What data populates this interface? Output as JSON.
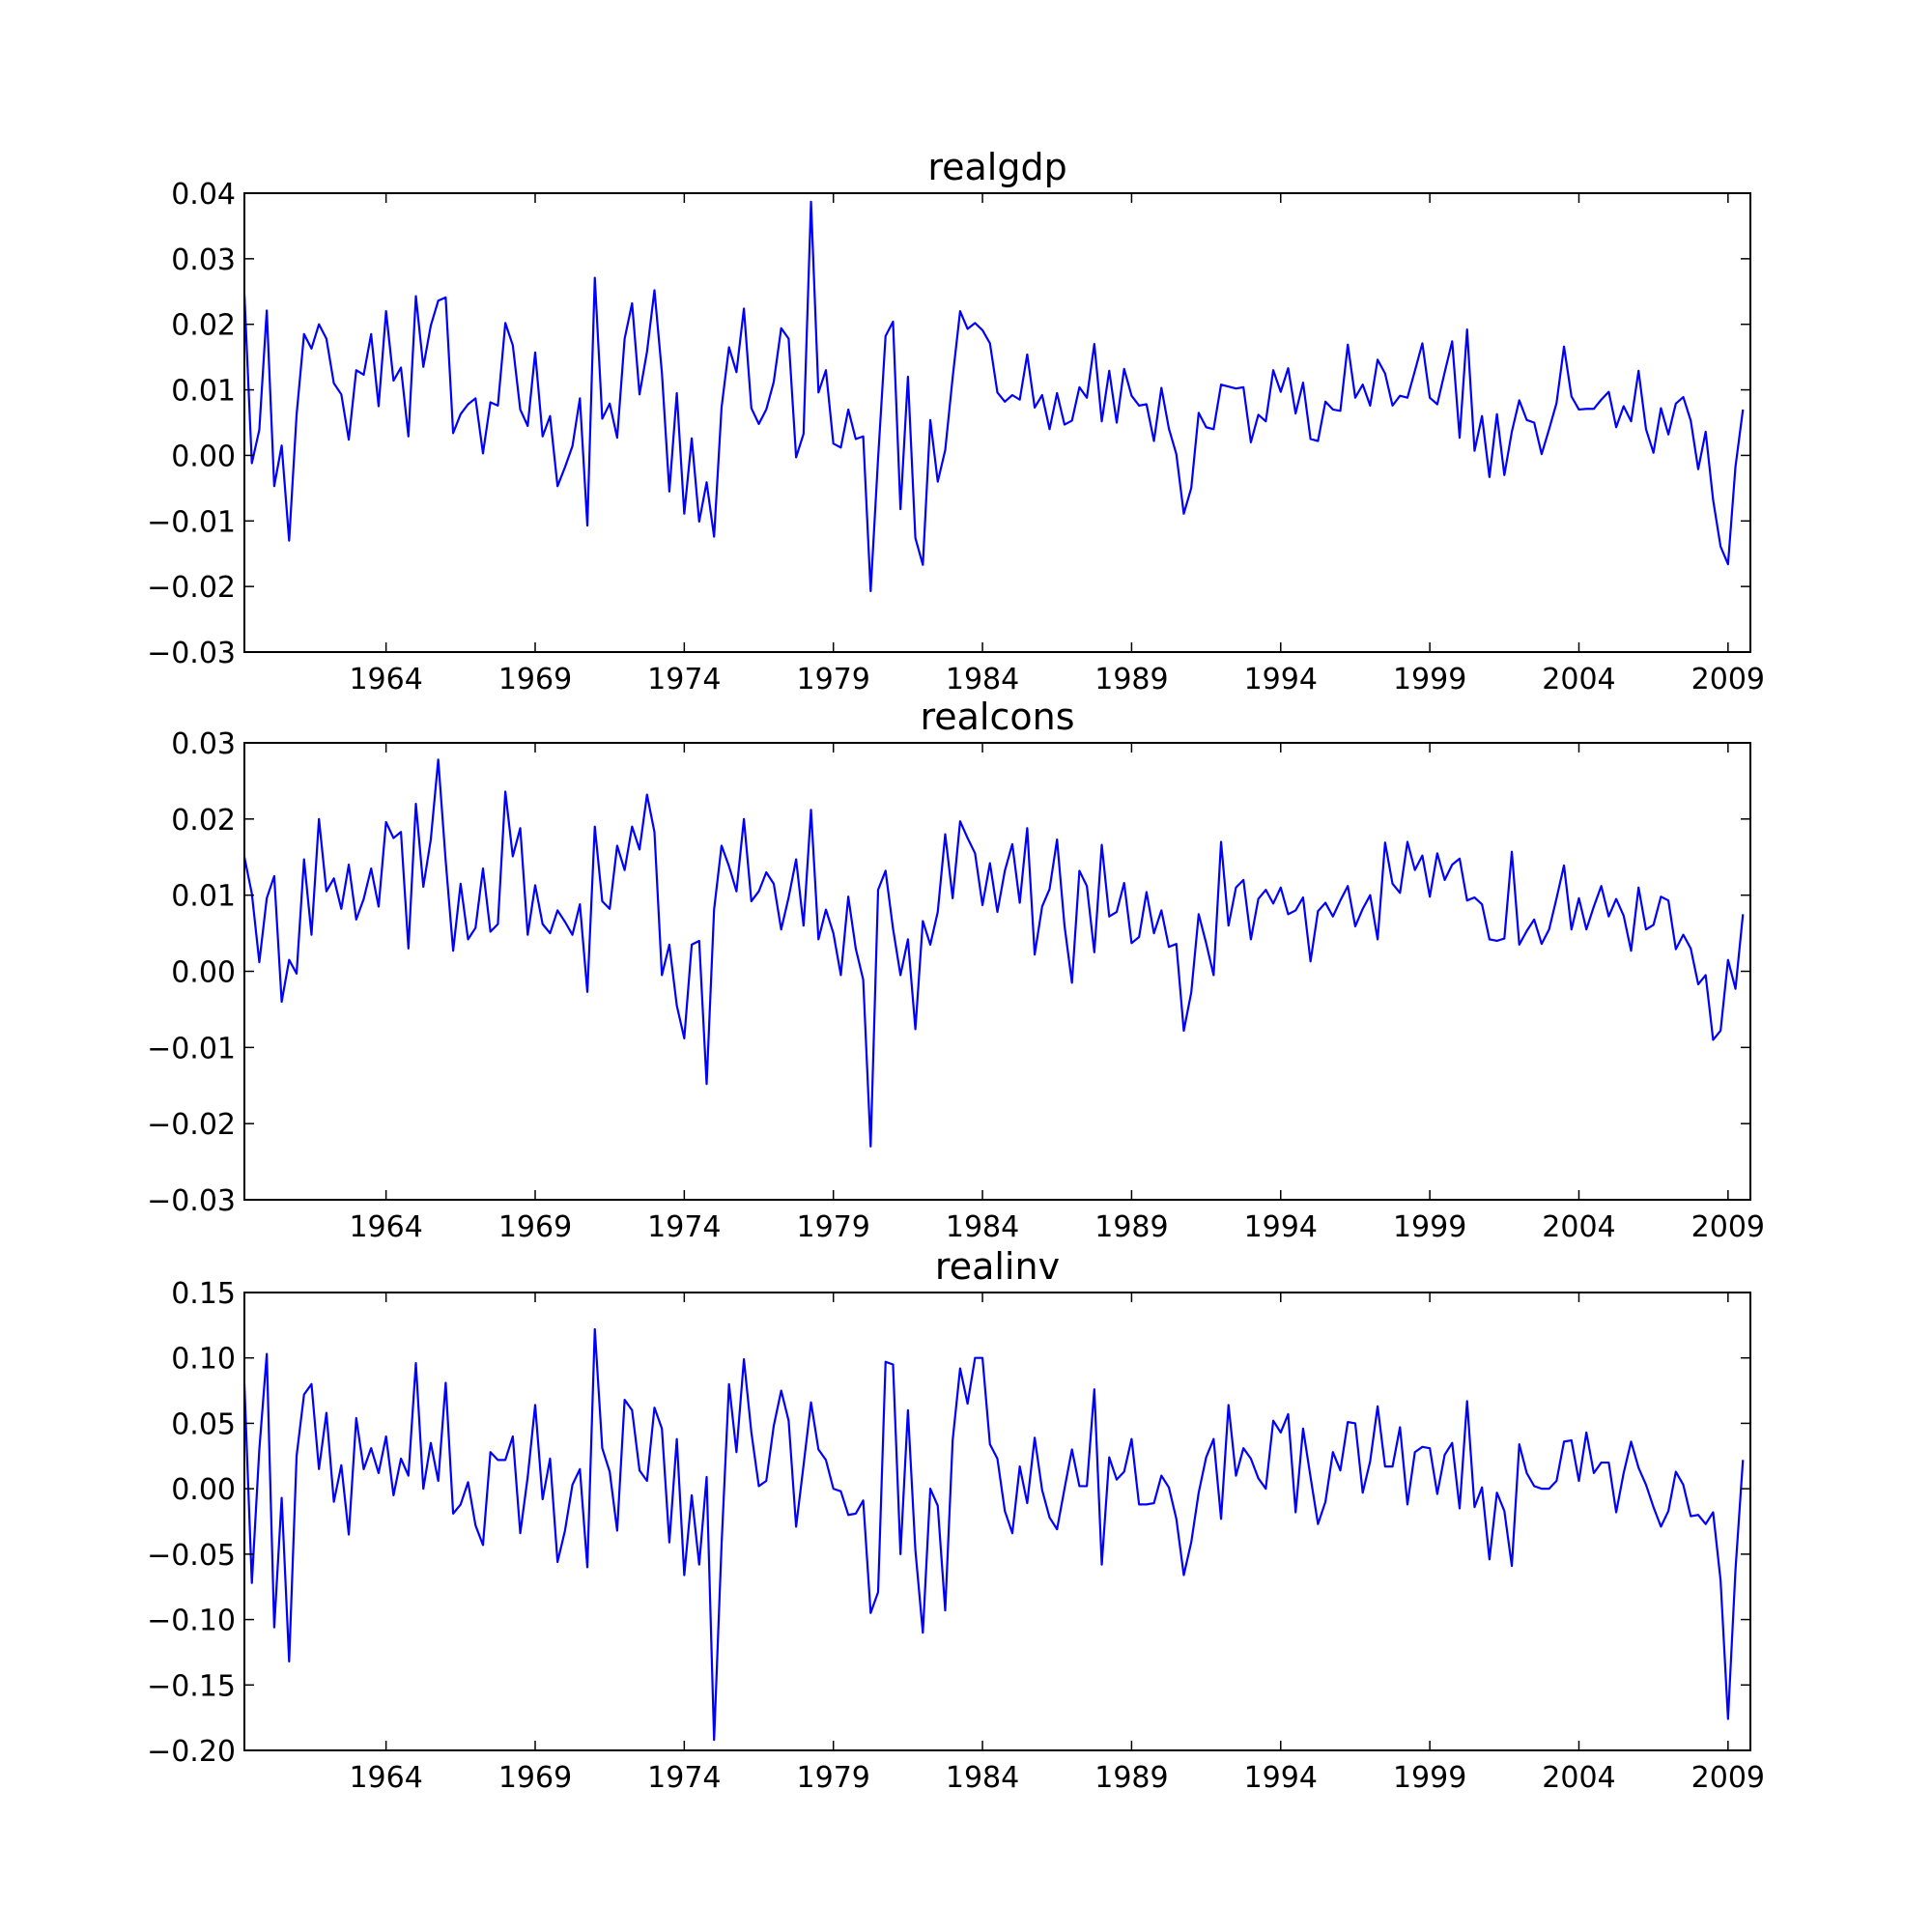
{
  "chart_data": [
    {
      "type": "line",
      "title": "realgdp",
      "xlabel": "",
      "ylabel": "",
      "xlim": [
        1959.25,
        2009.75
      ],
      "ylim": [
        -0.03,
        0.04
      ],
      "yticks": [
        -0.03,
        -0.02,
        -0.01,
        0.0,
        0.01,
        0.02,
        0.03,
        0.04
      ],
      "ytick_labels": [
        "−0.03",
        "−0.02",
        "−0.01",
        "0.00",
        "0.01",
        "0.02",
        "0.03",
        "0.04"
      ],
      "xticks": [
        1964,
        1969,
        1974,
        1979,
        1984,
        1989,
        1994,
        1999,
        2004,
        2009
      ],
      "xtick_labels": [
        "1964",
        "1969",
        "1974",
        "1979",
        "1984",
        "1989",
        "1994",
        "1999",
        "2004",
        "2009"
      ],
      "grid": false,
      "color": "#0000ff",
      "series": [
        {
          "x_start": 1959.25,
          "x_step": 0.25,
          "values": [
            0.0246,
            -0.0012,
            0.0039,
            0.0221,
            -0.0047,
            0.0015,
            -0.013,
            0.0062,
            0.0185,
            0.0163,
            0.02,
            0.0178,
            0.011,
            0.0093,
            0.0024,
            0.013,
            0.0123,
            0.0185,
            0.0075,
            0.022,
            0.0114,
            0.0134,
            0.0029,
            0.0243,
            0.0135,
            0.0198,
            0.0236,
            0.0241,
            0.0034,
            0.0063,
            0.0078,
            0.0087,
            0.0003,
            0.0081,
            0.0076,
            0.0202,
            0.0168,
            0.007,
            0.0045,
            0.0157,
            0.0029,
            0.006,
            -0.0047,
            -0.0018,
            0.0014,
            0.0087,
            -0.0107,
            0.0271,
            0.0056,
            0.0079,
            0.0027,
            0.0178,
            0.0232,
            0.0093,
            0.0158,
            0.0252,
            0.0126,
            -0.0055,
            0.0095,
            -0.0089,
            0.0026,
            -0.0101,
            -0.0041,
            -0.0124,
            0.0073,
            0.0165,
            0.0127,
            0.0224,
            0.0072,
            0.0048,
            0.007,
            0.0112,
            0.0194,
            0.0178,
            -0.0003,
            0.0033,
            0.0387,
            0.0096,
            0.013,
            0.0018,
            0.0012,
            0.007,
            0.0025,
            0.0029,
            -0.0207,
            -0.0004,
            0.0182,
            0.0204,
            -0.0082,
            0.012,
            -0.0126,
            -0.0167,
            0.0054,
            -0.004,
            0.0008,
            0.0119,
            0.022,
            0.0193,
            0.0202,
            0.0191,
            0.0171,
            0.0096,
            0.0082,
            0.0092,
            0.0085,
            0.0154,
            0.0073,
            0.0092,
            0.004,
            0.0095,
            0.0047,
            0.0053,
            0.0104,
            0.0088,
            0.017,
            0.0052,
            0.0129,
            0.005,
            0.0132,
            0.0091,
            0.0076,
            0.0078,
            0.0022,
            0.0103,
            0.0041,
            0.0002,
            -0.0089,
            -0.005,
            0.0065,
            0.0043,
            0.004,
            0.0108,
            0.0105,
            0.0102,
            0.0104,
            0.002,
            0.0062,
            0.0052,
            0.013,
            0.0097,
            0.0133,
            0.0064,
            0.0111,
            0.0025,
            0.0022,
            0.0082,
            0.007,
            0.0068,
            0.0169,
            0.0088,
            0.0108,
            0.0076,
            0.0146,
            0.0125,
            0.0076,
            0.0091,
            0.0088,
            0.0129,
            0.0171,
            0.0088,
            0.0078,
            0.0127,
            0.0174,
            0.0027,
            0.0192,
            0.0007,
            0.006,
            -0.0033,
            0.0063,
            -0.003,
            0.0036,
            0.0084,
            0.0054,
            0.005,
            0.0002,
            0.004,
            0.008,
            0.0166,
            0.009,
            0.007,
            0.0071,
            0.0071,
            0.0085,
            0.0097,
            0.0043,
            0.0075,
            0.0052,
            0.0129,
            0.004,
            0.0004,
            0.0072,
            0.0032,
            0.0079,
            0.0089,
            0.0053,
            -0.0021,
            0.0036,
            -0.0068,
            -0.0139,
            -0.0166,
            -0.0017,
            0.007
          ]
        }
      ]
    },
    {
      "type": "line",
      "title": "realcons",
      "xlabel": "",
      "ylabel": "",
      "xlim": [
        1959.25,
        2009.75
      ],
      "ylim": [
        -0.03,
        0.03
      ],
      "yticks": [
        -0.03,
        -0.02,
        -0.01,
        0.0,
        0.01,
        0.02,
        0.03
      ],
      "ytick_labels": [
        "−0.03",
        "−0.02",
        "−0.01",
        "0.00",
        "0.01",
        "0.02",
        "0.03"
      ],
      "xticks": [
        1964,
        1969,
        1974,
        1979,
        1984,
        1989,
        1994,
        1999,
        2004,
        2009
      ],
      "xtick_labels": [
        "1964",
        "1969",
        "1974",
        "1979",
        "1984",
        "1989",
        "1994",
        "1999",
        "2004",
        "2009"
      ],
      "grid": false,
      "color": "#0000ff",
      "series": [
        {
          "x_start": 1959.25,
          "x_step": 0.25,
          "values": [
            0.015,
            0.0102,
            0.0012,
            0.0096,
            0.0125,
            -0.004,
            0.0015,
            -0.0003,
            0.0147,
            0.0048,
            0.02,
            0.0105,
            0.0122,
            0.0082,
            0.014,
            0.0068,
            0.0095,
            0.0135,
            0.0085,
            0.0196,
            0.0175,
            0.0183,
            0.003,
            0.022,
            0.0111,
            0.0173,
            0.0278,
            0.0145,
            0.0027,
            0.0115,
            0.0042,
            0.0057,
            0.0135,
            0.0052,
            0.0062,
            0.0236,
            0.0151,
            0.0188,
            0.0048,
            0.0113,
            0.0062,
            0.005,
            0.008,
            0.0065,
            0.0048,
            0.0088,
            -0.0027,
            0.019,
            0.0092,
            0.0082,
            0.0165,
            0.0133,
            0.019,
            0.016,
            0.0232,
            0.0183,
            -0.0005,
            0.0035,
            -0.0045,
            -0.0088,
            0.0035,
            0.004,
            -0.0148,
            0.0081,
            0.0165,
            0.0138,
            0.0105,
            0.02,
            0.0092,
            0.0105,
            0.013,
            0.0115,
            0.0055,
            0.0097,
            0.0147,
            0.006,
            0.0212,
            0.0042,
            0.0081,
            0.005,
            -0.0005,
            0.0098,
            0.003,
            -0.0011,
            -0.023,
            0.0107,
            0.0132,
            0.0056,
            -0.0005,
            0.0042,
            -0.0076,
            0.0066,
            0.0035,
            0.0078,
            0.018,
            0.0096,
            0.0197,
            0.0175,
            0.0155,
            0.0087,
            0.0142,
            0.0078,
            0.0132,
            0.0167,
            0.009,
            0.0188,
            0.0022,
            0.0085,
            0.0108,
            0.0173,
            0.006,
            -0.0015,
            0.0132,
            0.0112,
            0.0025,
            0.0166,
            0.0072,
            0.0078,
            0.0116,
            0.0037,
            0.0045,
            0.0104,
            0.005,
            0.008,
            0.0032,
            0.0036,
            -0.0078,
            -0.0028,
            0.0075,
            0.0037,
            -0.0005,
            0.017,
            0.006,
            0.011,
            0.012,
            0.0042,
            0.0095,
            0.0107,
            0.0089,
            0.011,
            0.0075,
            0.008,
            0.0097,
            0.0013,
            0.0079,
            0.009,
            0.0072,
            0.0093,
            0.0112,
            0.0059,
            0.0082,
            0.01,
            0.0042,
            0.0169,
            0.0115,
            0.0103,
            0.017,
            0.0133,
            0.0152,
            0.0098,
            0.0155,
            0.012,
            0.014,
            0.0148,
            0.0093,
            0.0097,
            0.0088,
            0.0042,
            0.004,
            0.0043,
            0.0157,
            0.0035,
            0.0053,
            0.0068,
            0.0036,
            0.0055,
            0.0096,
            0.0139,
            0.0055,
            0.0096,
            0.0055,
            0.0085,
            0.0112,
            0.0072,
            0.0095,
            0.0073,
            0.0027,
            0.011,
            0.0055,
            0.0061,
            0.0098,
            0.0093,
            0.0029,
            0.0048,
            0.003,
            -0.0017,
            -0.0005,
            -0.009,
            -0.0078,
            0.0015,
            -0.0023,
            0.0075
          ]
        }
      ]
    },
    {
      "type": "line",
      "title": "realinv",
      "xlabel": "",
      "ylabel": "",
      "xlim": [
        1959.25,
        2009.75
      ],
      "ylim": [
        -0.2,
        0.15
      ],
      "yticks": [
        -0.2,
        -0.15,
        -0.1,
        -0.05,
        0.0,
        0.05,
        0.1,
        0.15
      ],
      "ytick_labels": [
        "−0.20",
        "−0.15",
        "−0.10",
        "−0.05",
        "0.00",
        "0.05",
        "0.10",
        "0.15"
      ],
      "xticks": [
        1964,
        1969,
        1974,
        1979,
        1984,
        1989,
        1994,
        1999,
        2004,
        2009
      ],
      "xtick_labels": [
        "1964",
        "1969",
        "1974",
        "1979",
        "1984",
        "1989",
        "1994",
        "1999",
        "2004",
        "2009"
      ],
      "grid": false,
      "color": "#0000ff",
      "series": [
        {
          "x_start": 1959.25,
          "x_step": 0.25,
          "values": [
            0.08,
            -0.072,
            0.03,
            0.103,
            -0.106,
            -0.007,
            -0.132,
            0.025,
            0.072,
            0.08,
            0.015,
            0.058,
            -0.01,
            0.018,
            -0.035,
            0.054,
            0.015,
            0.031,
            0.012,
            0.04,
            -0.005,
            0.023,
            0.01,
            0.096,
            0.0,
            0.035,
            0.006,
            0.081,
            -0.019,
            -0.012,
            0.005,
            -0.028,
            -0.043,
            0.028,
            0.022,
            0.022,
            0.04,
            -0.034,
            0.009,
            0.064,
            -0.008,
            0.023,
            -0.056,
            -0.032,
            0.003,
            0.015,
            -0.06,
            0.122,
            0.031,
            0.013,
            -0.032,
            0.068,
            0.06,
            0.014,
            0.006,
            0.062,
            0.046,
            -0.041,
            0.038,
            -0.066,
            -0.005,
            -0.058,
            0.009,
            -0.192,
            -0.043,
            0.08,
            0.028,
            0.099,
            0.043,
            0.002,
            0.006,
            0.048,
            0.075,
            0.052,
            -0.029,
            0.018,
            0.066,
            0.03,
            0.022,
            0.0,
            -0.002,
            -0.02,
            -0.019,
            -0.009,
            -0.095,
            -0.079,
            0.097,
            0.095,
            -0.05,
            0.06,
            -0.047,
            -0.11,
            0.0,
            -0.013,
            -0.093,
            0.037,
            0.092,
            0.065,
            0.1,
            0.1,
            0.034,
            0.023,
            -0.017,
            -0.034,
            0.017,
            -0.011,
            0.039,
            -0.001,
            -0.022,
            -0.031,
            0.0,
            0.03,
            0.002,
            0.002,
            0.076,
            -0.058,
            0.024,
            0.007,
            0.013,
            0.038,
            -0.012,
            -0.012,
            -0.011,
            0.01,
            0.001,
            -0.023,
            -0.066,
            -0.041,
            -0.003,
            0.024,
            0.038,
            -0.023,
            0.064,
            0.01,
            0.031,
            0.023,
            0.008,
            0.0,
            0.052,
            0.043,
            0.057,
            -0.018,
            0.046,
            0.009,
            -0.027,
            -0.01,
            0.028,
            0.014,
            0.051,
            0.05,
            -0.003,
            0.021,
            0.063,
            0.017,
            0.017,
            0.047,
            -0.012,
            0.028,
            0.032,
            0.031,
            -0.004,
            0.026,
            0.035,
            -0.015,
            0.067,
            -0.014,
            0.001,
            -0.054,
            -0.003,
            -0.017,
            -0.059,
            0.034,
            0.012,
            0.002,
            0.0,
            0.0,
            0.006,
            0.036,
            0.037,
            0.006,
            0.043,
            0.012,
            0.02,
            0.02,
            -0.018,
            0.012,
            0.036,
            0.016,
            0.003,
            -0.014,
            -0.029,
            -0.017,
            0.013,
            0.003,
            -0.021,
            -0.02,
            -0.027,
            -0.018,
            -0.07,
            -0.176,
            -0.062,
            0.022
          ]
        }
      ]
    }
  ]
}
